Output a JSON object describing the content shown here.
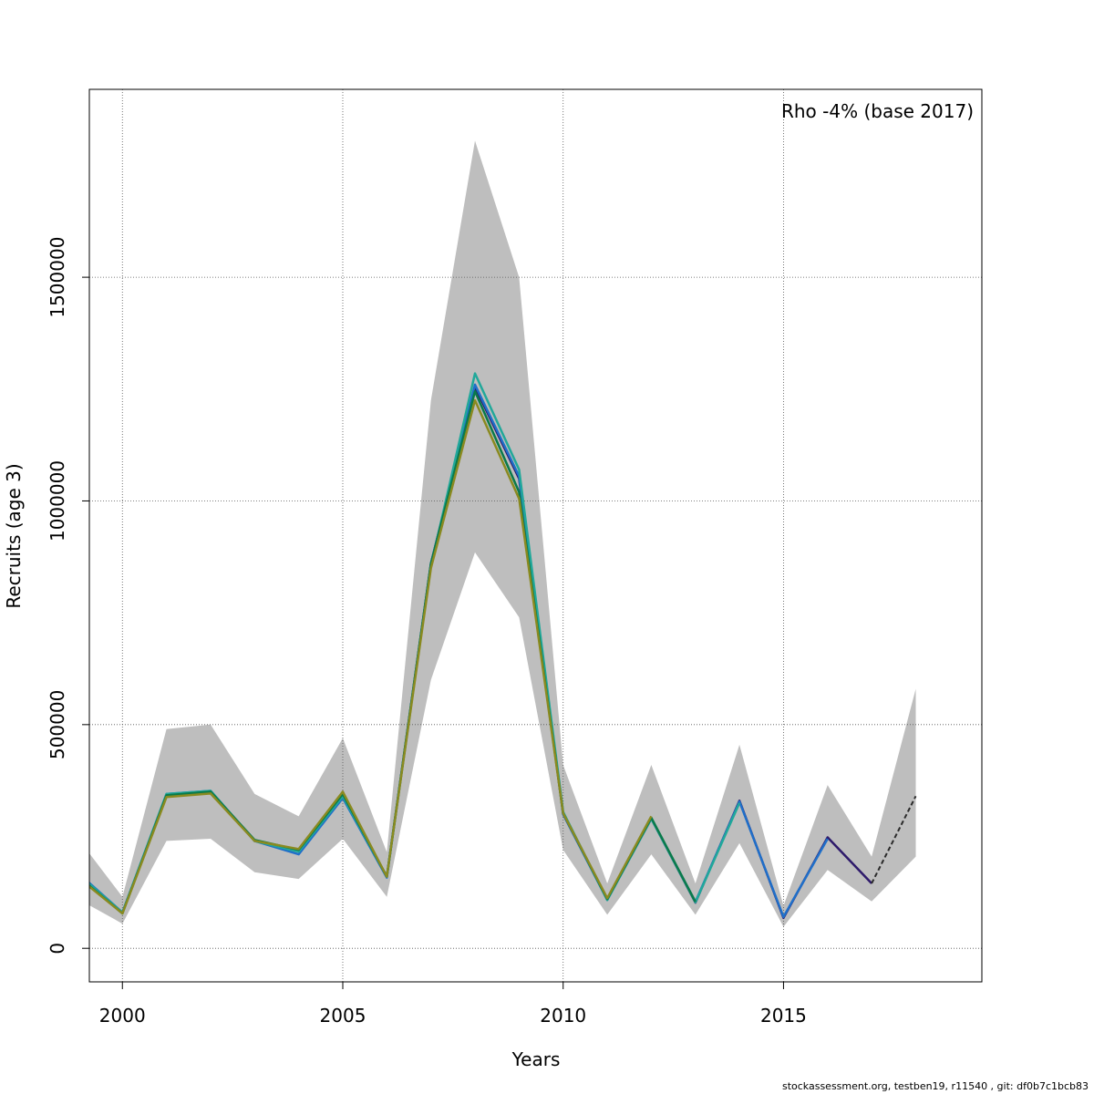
{
  "chart_data": {
    "type": "line",
    "title": "",
    "annotation": "Rho -4% (base 2017)",
    "xlabel": "Years",
    "ylabel": "Recruits (age 3)",
    "xlim": [
      1999.25,
      2019.5
    ],
    "ylim": [
      -75000,
      1920000
    ],
    "x_ticks": [
      2000,
      2005,
      2010,
      2015
    ],
    "y_ticks": [
      0,
      500000,
      1000000,
      1500000
    ],
    "grid": true,
    "band_color": "#bebebe",
    "band": {
      "x": [
        1999,
        2000,
        2001,
        2002,
        2003,
        2004,
        2005,
        2006,
        2007,
        2008,
        2009,
        2010,
        2011,
        2012,
        2013,
        2014,
        2015,
        2016,
        2017,
        2018
      ],
      "lower": [
        110000,
        55000,
        240000,
        245000,
        170000,
        155000,
        245000,
        115000,
        600000,
        885000,
        740000,
        220000,
        75000,
        210000,
        75000,
        235000,
        48000,
        175000,
        105000,
        205000
      ],
      "upper": [
        245000,
        115000,
        490000,
        500000,
        345000,
        295000,
        470000,
        215000,
        1225000,
        1805000,
        1500000,
        410000,
        145000,
        410000,
        145000,
        455000,
        95000,
        365000,
        205000,
        580000
      ]
    },
    "series": [
      {
        "color": "#2e1a6b",
        "dashed": false,
        "x": [
          1999,
          2000,
          2001,
          2002,
          2003,
          2004,
          2005,
          2006,
          2007,
          2008,
          2009,
          2010,
          2011,
          2012,
          2013,
          2014,
          2015,
          2016,
          2017
        ],
        "values": [
          165000,
          80000,
          342000,
          350000,
          240000,
          218000,
          342000,
          160000,
          860000,
          1255000,
          1050000,
          300000,
          110000,
          290000,
          102000,
          330000,
          68000,
          248000,
          145000
        ]
      },
      {
        "color": "#1f6fc9",
        "dashed": false,
        "x": [
          1999,
          2000,
          2001,
          2002,
          2003,
          2004,
          2005,
          2006,
          2007,
          2008,
          2009,
          2010,
          2011,
          2012,
          2013,
          2014,
          2015,
          2016
        ],
        "values": [
          168000,
          80000,
          345000,
          352000,
          240000,
          210000,
          336000,
          158000,
          860000,
          1260000,
          1055000,
          300000,
          108000,
          290000,
          104000,
          328000,
          70000,
          245000
        ]
      },
      {
        "color": "#21a89a",
        "dashed": false,
        "x": [
          1999,
          2000,
          2001,
          2002,
          2003,
          2004,
          2005,
          2006,
          2007,
          2008,
          2009,
          2010,
          2011,
          2012,
          2013,
          2014
        ],
        "values": [
          165000,
          80000,
          345000,
          352000,
          240000,
          216000,
          340000,
          160000,
          855000,
          1285000,
          1070000,
          305000,
          108000,
          290000,
          103000,
          325000
        ]
      },
      {
        "color": "#0a7a4a",
        "dashed": false,
        "x": [
          1999,
          2000,
          2001,
          2002,
          2003,
          2004,
          2005,
          2006,
          2007,
          2008,
          2009,
          2010,
          2011,
          2012,
          2013
        ],
        "values": [
          160000,
          78000,
          342000,
          350000,
          242000,
          220000,
          345000,
          160000,
          860000,
          1245000,
          1020000,
          302000,
          110000,
          292000,
          104000
        ]
      },
      {
        "color": "#8a8a20",
        "dashed": false,
        "x": [
          1999,
          2000,
          2001,
          2002,
          2003,
          2004,
          2005,
          2006,
          2007,
          2008,
          2009,
          2010,
          2011,
          2012
        ],
        "values": [
          158000,
          78000,
          338000,
          346000,
          240000,
          222000,
          350000,
          160000,
          850000,
          1225000,
          1005000,
          302000,
          112000,
          295000
        ]
      },
      {
        "color": "#2b2b2b",
        "dashed": true,
        "x": [
          2017,
          2018
        ],
        "values": [
          145000,
          340000
        ]
      }
    ]
  },
  "footer": {
    "text": "stockassessment.org, testben19, r11540 , git: df0b7c1bcb83"
  }
}
